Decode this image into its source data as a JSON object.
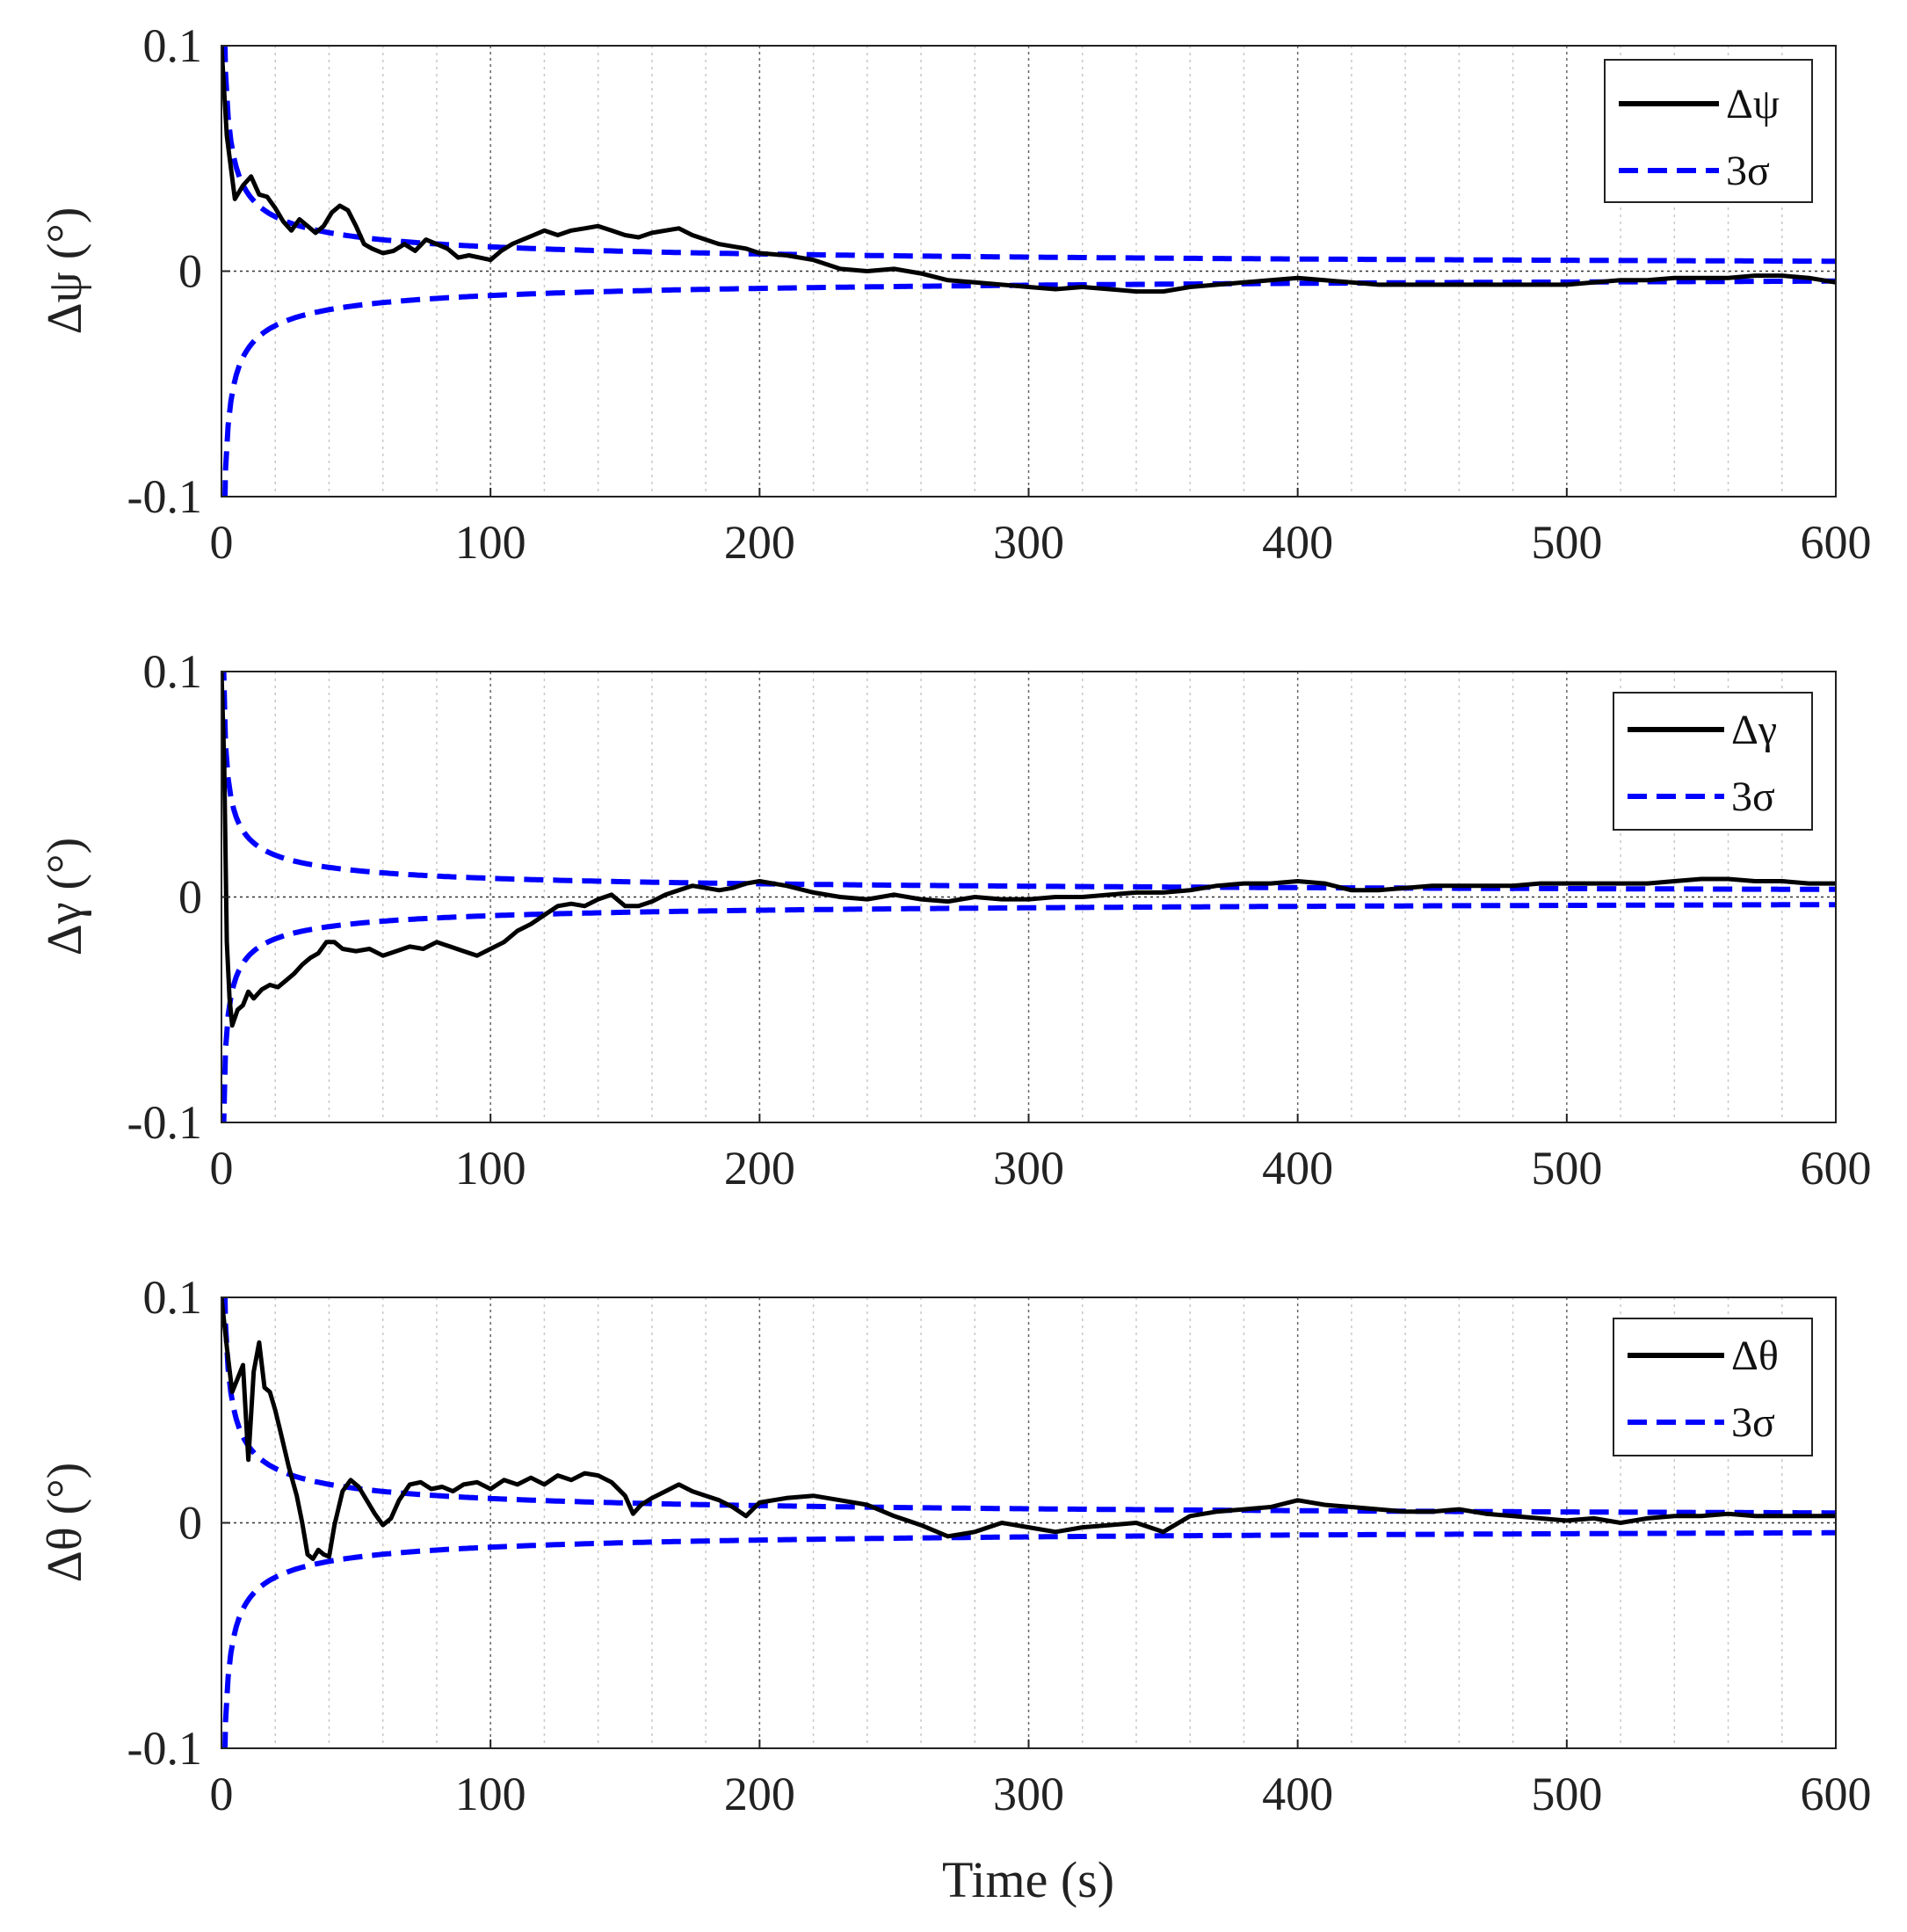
{
  "colors": {
    "error": "#000000",
    "bound": "#0000ff",
    "grid": "#666666",
    "axis": "#222222"
  },
  "chart_data": [
    {
      "type": "line",
      "xlabel": "",
      "ylabel": "Δψ (°)",
      "xlim": [
        0,
        600
      ],
      "ylim": [
        -0.1,
        0.1
      ],
      "xticks": [
        "0",
        "100",
        "200",
        "300",
        "400",
        "500",
        "600"
      ],
      "yticks": [
        "-0.1",
        "0",
        "0.1"
      ],
      "legend": {
        "position": "top-right",
        "entries": [
          "Δψ",
          "3σ"
        ]
      },
      "error_series": {
        "name": "Δψ",
        "x": [
          0,
          2,
          5,
          8,
          11,
          14,
          17,
          20,
          23,
          26,
          29,
          32,
          35,
          38,
          41,
          44,
          47,
          50,
          53,
          56,
          60,
          64,
          68,
          72,
          76,
          80,
          84,
          88,
          92,
          96,
          100,
          104,
          108,
          112,
          116,
          120,
          125,
          130,
          135,
          140,
          145,
          150,
          155,
          160,
          165,
          170,
          175,
          180,
          185,
          190,
          195,
          200,
          210,
          220,
          230,
          240,
          250,
          260,
          270,
          280,
          290,
          300,
          310,
          320,
          330,
          340,
          350,
          360,
          370,
          380,
          390,
          400,
          410,
          420,
          430,
          440,
          450,
          460,
          470,
          480,
          490,
          500,
          510,
          520,
          530,
          540,
          550,
          560,
          570,
          580,
          590,
          600
        ],
        "y": [
          0.1,
          0.06,
          0.032,
          0.038,
          0.042,
          0.034,
          0.033,
          0.028,
          0.022,
          0.018,
          0.023,
          0.02,
          0.017,
          0.02,
          0.026,
          0.029,
          0.027,
          0.02,
          0.012,
          0.01,
          0.008,
          0.009,
          0.012,
          0.009,
          0.014,
          0.012,
          0.01,
          0.006,
          0.007,
          0.006,
          0.005,
          0.009,
          0.012,
          0.014,
          0.016,
          0.018,
          0.016,
          0.018,
          0.019,
          0.02,
          0.018,
          0.016,
          0.015,
          0.017,
          0.018,
          0.019,
          0.016,
          0.014,
          0.012,
          0.011,
          0.01,
          0.008,
          0.007,
          0.005,
          0.001,
          0.0,
          0.001,
          -0.001,
          -0.004,
          -0.005,
          -0.006,
          -0.007,
          -0.008,
          -0.007,
          -0.008,
          -0.009,
          -0.009,
          -0.007,
          -0.006,
          -0.005,
          -0.004,
          -0.003,
          -0.004,
          -0.005,
          -0.006,
          -0.006,
          -0.006,
          -0.006,
          -0.006,
          -0.006,
          -0.006,
          -0.006,
          -0.005,
          -0.004,
          -0.004,
          -0.003,
          -0.003,
          -0.003,
          -0.002,
          -0.002,
          -0.003,
          -0.005
        ]
      },
      "bound_scale": 0.108
    },
    {
      "type": "line",
      "xlabel": "",
      "ylabel": "Δγ (°)",
      "xlim": [
        0,
        600
      ],
      "ylim": [
        -0.1,
        0.1
      ],
      "xticks": [
        "0",
        "100",
        "200",
        "300",
        "400",
        "500",
        "600"
      ],
      "yticks": [
        "-0.1",
        "0",
        "0.1"
      ],
      "legend": {
        "position": "top-right",
        "entries": [
          "Δγ",
          "3σ"
        ]
      },
      "error_series": {
        "name": "Δγ",
        "x": [
          0,
          1,
          2,
          3,
          4,
          6,
          8,
          10,
          12,
          15,
          18,
          21,
          24,
          27,
          30,
          33,
          36,
          39,
          42,
          45,
          50,
          55,
          60,
          65,
          70,
          75,
          80,
          85,
          90,
          95,
          100,
          105,
          110,
          115,
          120,
          125,
          130,
          135,
          140,
          145,
          150,
          155,
          160,
          165,
          170,
          175,
          180,
          185,
          190,
          195,
          200,
          210,
          220,
          230,
          240,
          250,
          260,
          270,
          280,
          290,
          300,
          310,
          320,
          330,
          340,
          350,
          360,
          370,
          380,
          390,
          400,
          410,
          420,
          430,
          440,
          450,
          460,
          470,
          480,
          490,
          500,
          510,
          520,
          530,
          540,
          550,
          560,
          570,
          580,
          590,
          600
        ],
        "y": [
          0.1,
          0.06,
          -0.02,
          -0.045,
          -0.057,
          -0.05,
          -0.048,
          -0.042,
          -0.045,
          -0.041,
          -0.039,
          -0.04,
          -0.037,
          -0.034,
          -0.03,
          -0.027,
          -0.025,
          -0.02,
          -0.02,
          -0.023,
          -0.024,
          -0.023,
          -0.026,
          -0.024,
          -0.022,
          -0.023,
          -0.02,
          -0.022,
          -0.024,
          -0.026,
          -0.023,
          -0.02,
          -0.015,
          -0.012,
          -0.008,
          -0.004,
          -0.003,
          -0.004,
          -0.001,
          0.001,
          -0.004,
          -0.004,
          -0.002,
          0.001,
          0.003,
          0.005,
          0.004,
          0.003,
          0.004,
          0.006,
          0.007,
          0.005,
          0.002,
          0.0,
          -0.001,
          0.001,
          -0.001,
          -0.002,
          0.0,
          -0.001,
          -0.001,
          0.0,
          0.0,
          0.001,
          0.002,
          0.002,
          0.003,
          0.005,
          0.006,
          0.006,
          0.007,
          0.006,
          0.003,
          0.003,
          0.004,
          0.005,
          0.005,
          0.005,
          0.005,
          0.006,
          0.006,
          0.006,
          0.006,
          0.006,
          0.007,
          0.008,
          0.008,
          0.007,
          0.007,
          0.006,
          0.006
        ]
      },
      "bound_scale": 0.083
    },
    {
      "type": "line",
      "xlabel": "Time (s)",
      "ylabel": "Δθ (°)",
      "xlim": [
        0,
        600
      ],
      "ylim": [
        -0.1,
        0.1
      ],
      "xticks": [
        "0",
        "100",
        "200",
        "300",
        "400",
        "500",
        "600"
      ],
      "yticks": [
        "-0.1",
        "0",
        "0.1"
      ],
      "legend": {
        "position": "top-right",
        "entries": [
          "Δθ",
          "3σ"
        ]
      },
      "error_series": {
        "name": "Δθ",
        "x": [
          0,
          2,
          4,
          6,
          8,
          10,
          12,
          14,
          16,
          18,
          20,
          22,
          25,
          28,
          30,
          32,
          34,
          36,
          38,
          40,
          42,
          45,
          48,
          51,
          54,
          57,
          60,
          63,
          66,
          70,
          74,
          78,
          82,
          86,
          90,
          95,
          100,
          105,
          110,
          115,
          120,
          125,
          130,
          135,
          140,
          145,
          150,
          153,
          156,
          160,
          165,
          170,
          175,
          180,
          185,
          190,
          195,
          200,
          210,
          220,
          230,
          240,
          250,
          260,
          270,
          280,
          290,
          300,
          310,
          320,
          330,
          340,
          350,
          360,
          370,
          380,
          390,
          400,
          410,
          420,
          430,
          440,
          450,
          460,
          470,
          480,
          490,
          500,
          510,
          520,
          530,
          540,
          550,
          560,
          570,
          580,
          590,
          600
        ],
        "y": [
          0.1,
          0.078,
          0.058,
          0.064,
          0.07,
          0.028,
          0.067,
          0.08,
          0.06,
          0.058,
          0.05,
          0.04,
          0.025,
          0.012,
          0.0,
          -0.014,
          -0.016,
          -0.012,
          -0.014,
          -0.015,
          -0.001,
          0.014,
          0.019,
          0.016,
          0.01,
          0.004,
          -0.001,
          0.002,
          0.01,
          0.017,
          0.018,
          0.015,
          0.016,
          0.014,
          0.017,
          0.018,
          0.015,
          0.019,
          0.017,
          0.02,
          0.017,
          0.021,
          0.019,
          0.022,
          0.021,
          0.018,
          0.012,
          0.004,
          0.008,
          0.011,
          0.014,
          0.017,
          0.014,
          0.012,
          0.01,
          0.007,
          0.003,
          0.009,
          0.011,
          0.012,
          0.01,
          0.008,
          0.003,
          -0.001,
          -0.006,
          -0.004,
          0.0,
          -0.002,
          -0.004,
          -0.002,
          -0.001,
          0.0,
          -0.004,
          0.003,
          0.005,
          0.006,
          0.007,
          0.01,
          0.008,
          0.007,
          0.006,
          0.005,
          0.005,
          0.006,
          0.004,
          0.003,
          0.002,
          0.001,
          0.002,
          0.0,
          0.002,
          0.003,
          0.003,
          0.004,
          0.003,
          0.003,
          0.003,
          0.003
        ]
      },
      "bound_scale": 0.108
    }
  ]
}
